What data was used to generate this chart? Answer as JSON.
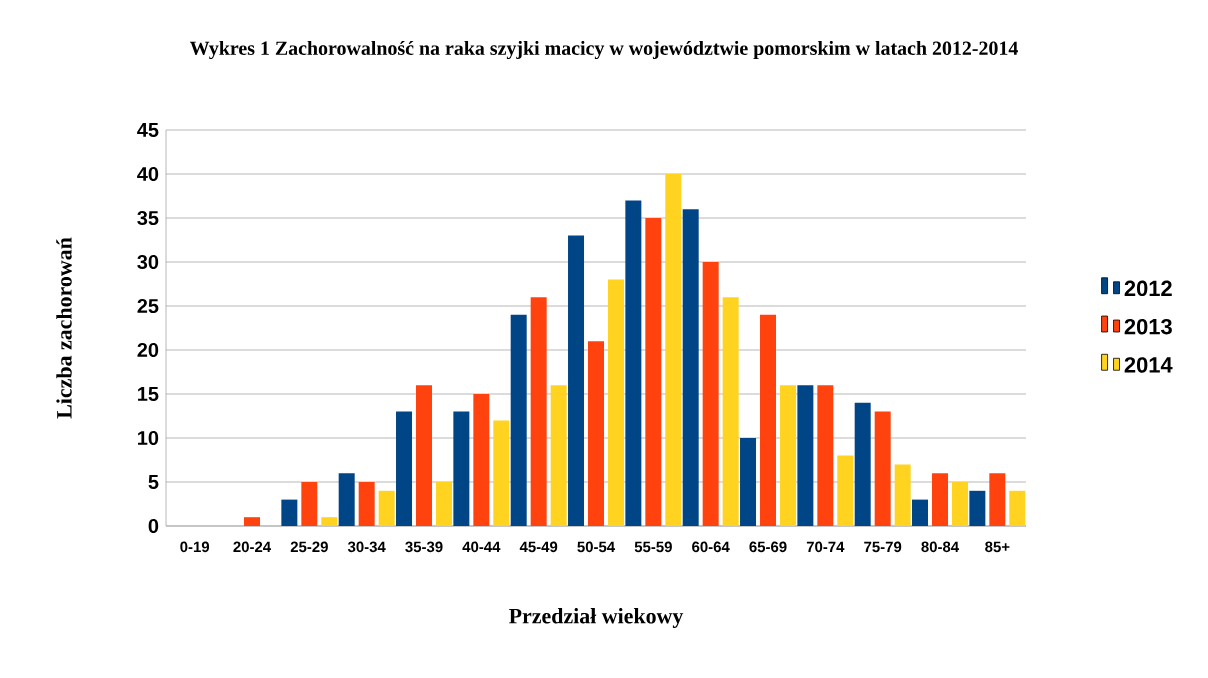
{
  "chart_data": {
    "type": "bar",
    "title": "Wykres 1  Zachorowalność na raka szyjki macicy w województwie pomorskim w latach 2012-2014",
    "xlabel": "Przedział wiekowy",
    "ylabel": "Liczba zachorowań",
    "categories": [
      "0-19",
      "20-24",
      "25-29",
      "30-34",
      "35-39",
      "40-44",
      "45-49",
      "50-54",
      "55-59",
      "60-64",
      "65-69",
      "70-74",
      "75-79",
      "80-84",
      "85+"
    ],
    "series": [
      {
        "name": "2012",
        "color": "#004586",
        "values": [
          0,
          0,
          3,
          6,
          13,
          13,
          24,
          33,
          37,
          36,
          10,
          16,
          14,
          3,
          4
        ]
      },
      {
        "name": "2013",
        "color": "#ff420e",
        "values": [
          0,
          1,
          5,
          5,
          16,
          15,
          26,
          21,
          35,
          30,
          24,
          16,
          13,
          6,
          6
        ]
      },
      {
        "name": "2014",
        "color": "#ffd320",
        "values": [
          0,
          0,
          1,
          4,
          5,
          12,
          16,
          28,
          40,
          26,
          16,
          8,
          7,
          5,
          4
        ]
      }
    ],
    "ylim": [
      0,
      45
    ],
    "yticks": [
      0,
      5,
      10,
      15,
      20,
      25,
      30,
      35,
      40,
      45
    ],
    "grid": "y",
    "legend": "right"
  }
}
